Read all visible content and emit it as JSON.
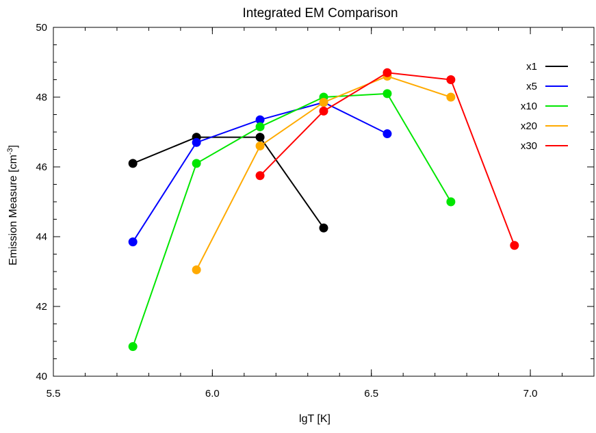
{
  "chart_data": {
    "type": "line",
    "title": "Integrated EM Comparison",
    "xlabel": "lgT [K]",
    "ylabel_main": "Emission Measure [cm",
    "ylabel_sup": "-3",
    "ylabel_tail": "]",
    "xlim": [
      5.5,
      7.2
    ],
    "ylim": [
      40,
      50
    ],
    "x_ticks": [
      5.5,
      6.0,
      6.5,
      7.0
    ],
    "x_tick_labels": [
      "5.5",
      "6.0",
      "6.5",
      "7.0"
    ],
    "x_minor_step": 0.1,
    "y_ticks": [
      40,
      42,
      44,
      46,
      48,
      50
    ],
    "y_tick_labels": [
      "40",
      "42",
      "44",
      "46",
      "48",
      "50"
    ],
    "y_minor_step": 0.5,
    "grid": false,
    "legend_position": "top-right",
    "series": [
      {
        "name": "x1",
        "color": "#000000",
        "x": [
          5.75,
          5.95,
          6.15,
          6.35
        ],
        "y": [
          46.1,
          46.85,
          46.85,
          44.25
        ]
      },
      {
        "name": "x5",
        "color": "#0000ff",
        "x": [
          5.75,
          5.95,
          6.15,
          6.35,
          6.55
        ],
        "y": [
          43.85,
          46.7,
          47.35,
          47.85,
          46.95
        ]
      },
      {
        "name": "x10",
        "color": "#00e600",
        "x": [
          5.75,
          5.95,
          6.15,
          6.35,
          6.55,
          6.75
        ],
        "y": [
          40.85,
          46.1,
          47.15,
          48.0,
          48.1,
          45.0
        ]
      },
      {
        "name": "x20",
        "color": "#ffaa00",
        "x": [
          5.95,
          6.15,
          6.35,
          6.55,
          6.75
        ],
        "y": [
          43.05,
          46.6,
          47.85,
          48.6,
          48.0
        ]
      },
      {
        "name": "x30",
        "color": "#ff0000",
        "x": [
          6.15,
          6.35,
          6.55,
          6.75,
          6.95
        ],
        "y": [
          45.75,
          47.6,
          48.7,
          48.5,
          43.75
        ]
      }
    ]
  }
}
